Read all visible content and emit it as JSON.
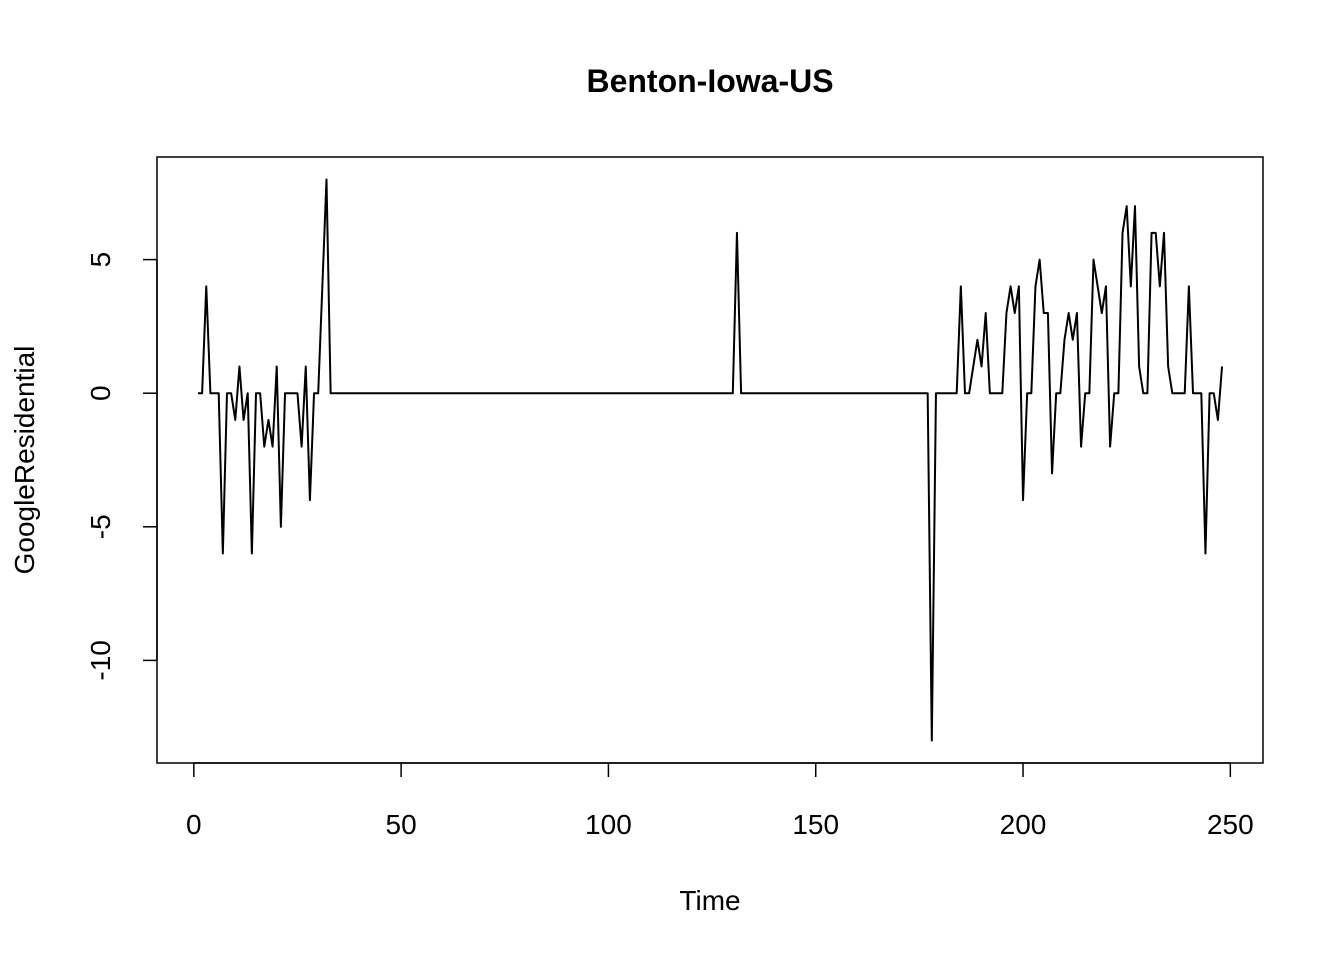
{
  "chart_data": {
    "type": "line",
    "title": "Benton-Iowa-US",
    "x_label": "Time",
    "y_label": "GoogleResidential",
    "x": [
      1,
      2,
      3,
      4,
      5,
      6,
      7,
      8,
      9,
      10,
      11,
      12,
      13,
      14,
      15,
      16,
      17,
      18,
      19,
      20,
      21,
      22,
      23,
      24,
      25,
      26,
      27,
      28,
      29,
      30,
      31,
      32,
      33,
      34,
      35,
      36,
      37,
      38,
      39,
      40,
      41,
      42,
      43,
      44,
      45,
      46,
      47,
      48,
      49,
      50,
      51,
      52,
      53,
      54,
      55,
      56,
      57,
      58,
      59,
      60,
      61,
      62,
      63,
      64,
      65,
      66,
      67,
      68,
      69,
      70,
      71,
      72,
      73,
      74,
      75,
      76,
      77,
      78,
      79,
      80,
      81,
      82,
      83,
      84,
      85,
      86,
      87,
      88,
      89,
      90,
      91,
      92,
      93,
      94,
      95,
      96,
      97,
      98,
      99,
      100,
      101,
      102,
      103,
      104,
      105,
      106,
      107,
      108,
      109,
      110,
      111,
      112,
      113,
      114,
      115,
      116,
      117,
      118,
      119,
      120,
      121,
      122,
      123,
      124,
      125,
      126,
      127,
      128,
      129,
      130,
      131,
      132,
      133,
      134,
      135,
      136,
      137,
      138,
      139,
      140,
      141,
      142,
      143,
      144,
      145,
      146,
      147,
      148,
      149,
      150,
      151,
      152,
      153,
      154,
      155,
      156,
      157,
      158,
      159,
      160,
      161,
      162,
      163,
      164,
      165,
      166,
      167,
      168,
      169,
      170,
      171,
      172,
      173,
      174,
      175,
      176,
      177,
      178,
      179,
      180,
      181,
      182,
      183,
      184,
      185,
      186,
      187,
      188,
      189,
      190,
      191,
      192,
      193,
      194,
      195,
      196,
      197,
      198,
      199,
      200,
      201,
      202,
      203,
      204,
      205,
      206,
      207,
      208,
      209,
      210,
      211,
      212,
      213,
      214,
      215,
      216,
      217,
      218,
      219,
      220,
      221,
      222,
      223,
      224,
      225,
      226,
      227,
      228,
      229,
      230,
      231,
      232,
      233,
      234,
      235,
      236,
      237,
      238,
      239,
      240,
      241,
      242,
      243,
      244,
      245,
      246,
      247,
      248
    ],
    "series": [
      {
        "color": "#000000",
        "values": [
          0,
          0,
          4,
          0,
          0,
          0,
          -6,
          0,
          0,
          -1,
          1,
          -1,
          0,
          -6,
          0,
          0,
          -2,
          -1,
          -2,
          1,
          -5,
          0,
          0,
          0,
          0,
          -2,
          1,
          -4,
          0,
          0,
          4,
          8,
          0,
          0,
          0,
          0,
          0,
          0,
          0,
          0,
          0,
          0,
          0,
          0,
          0,
          0,
          0,
          0,
          0,
          0,
          0,
          0,
          0,
          0,
          0,
          0,
          0,
          0,
          0,
          0,
          0,
          0,
          0,
          0,
          0,
          0,
          0,
          0,
          0,
          0,
          0,
          0,
          0,
          0,
          0,
          0,
          0,
          0,
          0,
          0,
          0,
          0,
          0,
          0,
          0,
          0,
          0,
          0,
          0,
          0,
          0,
          0,
          0,
          0,
          0,
          0,
          0,
          0,
          0,
          0,
          0,
          0,
          0,
          0,
          0,
          0,
          0,
          0,
          0,
          0,
          0,
          0,
          0,
          0,
          0,
          0,
          0,
          0,
          0,
          0,
          0,
          0,
          0,
          0,
          0,
          0,
          0,
          0,
          0,
          0,
          6,
          0,
          0,
          0,
          0,
          0,
          0,
          0,
          0,
          0,
          0,
          0,
          0,
          0,
          0,
          0,
          0,
          0,
          0,
          0,
          0,
          0,
          0,
          0,
          0,
          0,
          0,
          0,
          0,
          0,
          0,
          0,
          0,
          0,
          0,
          0,
          0,
          0,
          0,
          0,
          0,
          0,
          0,
          0,
          0,
          0,
          0,
          -13,
          0,
          0,
          0,
          0,
          0,
          0,
          4,
          0,
          0,
          1,
          2,
          1,
          3,
          0,
          0,
          0,
          0,
          3,
          4,
          3,
          4,
          -4,
          0,
          0,
          4,
          5,
          3,
          3,
          -3,
          0,
          0,
          2,
          3,
          2,
          3,
          -2,
          0,
          0,
          5,
          4,
          3,
          4,
          -2,
          0,
          0,
          6,
          7,
          4,
          7,
          1,
          0,
          0,
          6,
          6,
          4,
          6,
          1,
          0,
          0,
          0,
          0,
          4,
          0,
          0,
          0,
          -6,
          0,
          0,
          -1,
          1
        ]
      }
    ],
    "xlim": [
      -8.88,
      257.88
    ],
    "ylim": [
      -13.84,
      8.84
    ],
    "xticks": [
      0,
      50,
      100,
      150,
      200,
      250
    ],
    "yticks": [
      -10,
      -5,
      0,
      5
    ]
  }
}
